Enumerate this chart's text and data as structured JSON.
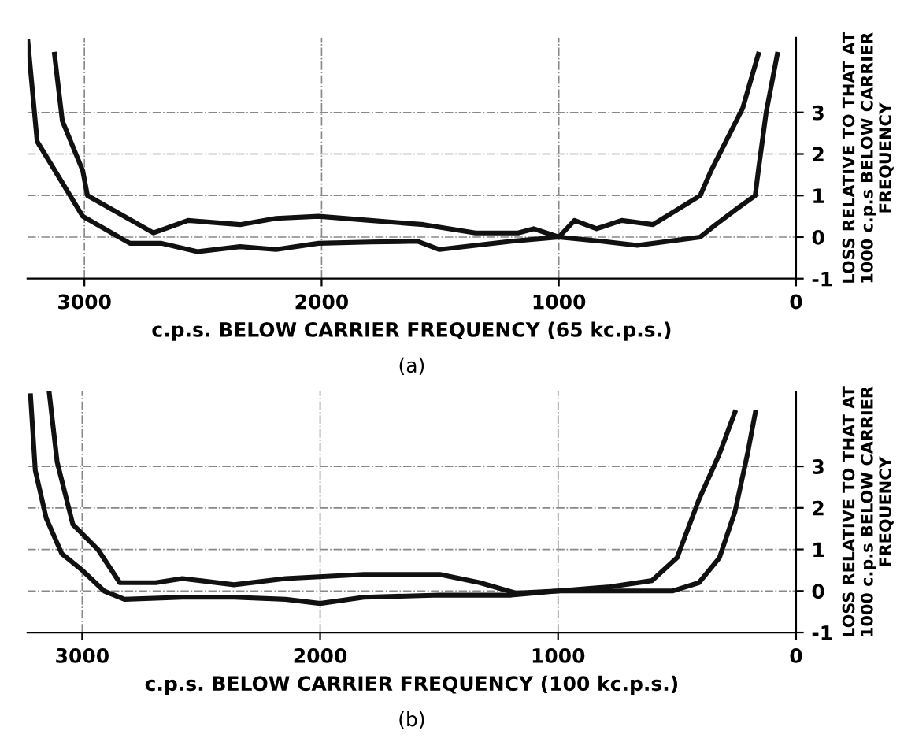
{
  "chart_data": [
    {
      "type": "line",
      "xlabel": "c.p.s. BELOW CARRIER FREQUENCY (65 kc.p.s.)",
      "ylabel": "LOSS RELATIVE TO THAT AT\n1000 c.p.s BELOW CARRIER\nFREQUENCY",
      "annotations": [
        "(a)"
      ],
      "xlim": [
        3240,
        0
      ],
      "ylim": [
        -1,
        4.8
      ],
      "xticks": [
        3000,
        2000,
        1000,
        0
      ],
      "yticks": [
        -1,
        0,
        1,
        2,
        3
      ],
      "grid": true,
      "marker": "none",
      "line_style": "solid",
      "series": [
        {
          "color": "#111111",
          "x": [
            3238,
            3199,
            3007,
            2808,
            2675,
            2523,
            2344,
            2192,
            2013,
            1795,
            1596,
            1503,
            1351,
            1199,
            1000,
            821,
            669,
            536,
            404,
            338,
            245,
            172,
            159,
            126,
            79
          ],
          "values": [
            4.7,
            2.3,
            0.5,
            -0.15,
            -0.15,
            -0.35,
            -0.23,
            -0.3,
            -0.15,
            -0.12,
            -0.1,
            -0.3,
            -0.2,
            -0.1,
            0,
            -0.1,
            -0.2,
            -0.1,
            0,
            0.3,
            0.7,
            1.0,
            1.6,
            3.0,
            4.4
          ]
        },
        {
          "color": "#111111",
          "x": [
            3126,
            3093,
            3007,
            2987,
            2709,
            2563,
            2344,
            2192,
            2013,
            1795,
            1570,
            1351,
            1172,
            1106,
            1000,
            934,
            841,
            735,
            603,
            404,
            358,
            225,
            159
          ],
          "values": [
            4.4,
            2.8,
            1.6,
            1.0,
            0.1,
            0.4,
            0.3,
            0.45,
            0.5,
            0.4,
            0.3,
            0.1,
            0.1,
            0.2,
            0,
            0.4,
            0.2,
            0.4,
            0.3,
            1.0,
            1.6,
            3.1,
            4.4
          ]
        }
      ]
    },
    {
      "type": "line",
      "xlabel": "c.p.s. BELOW CARRIER FREQUENCY (100 kc.p.s.)",
      "ylabel": "LOSS RELATIVE TO THAT AT\n1000 c.p.s BELOW CARRIER\nFREQUENCY",
      "annotations": [
        "(b)"
      ],
      "xlim": [
        3230,
        0
      ],
      "ylim": [
        -1,
        4.8
      ],
      "xticks": [
        3000,
        2000,
        1000,
        0
      ],
      "yticks": [
        -1,
        0,
        1,
        2,
        3
      ],
      "grid": true,
      "marker": "none",
      "line_style": "solid",
      "series": [
        {
          "color": "#111111",
          "x": [
            3217,
            3197,
            3151,
            3086,
            3000,
            2908,
            2822,
            2579,
            2362,
            2145,
            2000,
            1816,
            1497,
            1197,
            1000,
            737,
            520,
            408,
            322,
            257,
            204,
            171
          ],
          "values": [
            4.7,
            2.9,
            1.75,
            0.9,
            0.5,
            0,
            -0.2,
            -0.15,
            -0.15,
            -0.2,
            -0.3,
            -0.15,
            -0.1,
            -0.1,
            0,
            0,
            0,
            0.2,
            0.8,
            1.9,
            3.3,
            4.3
          ]
        },
        {
          "color": "#111111",
          "x": [
            3138,
            3105,
            3039,
            2934,
            2842,
            2691,
            2579,
            2362,
            2145,
            1816,
            1497,
            1329,
            1178,
            1000,
            783,
            605,
            500,
            408,
            322,
            257
          ],
          "values": [
            4.75,
            3.1,
            1.6,
            1.0,
            0.2,
            0.2,
            0.3,
            0.15,
            0.3,
            0.4,
            0.4,
            0.2,
            -0.05,
            0,
            0.1,
            0.25,
            0.8,
            2.2,
            3.3,
            4.3
          ]
        }
      ]
    }
  ]
}
